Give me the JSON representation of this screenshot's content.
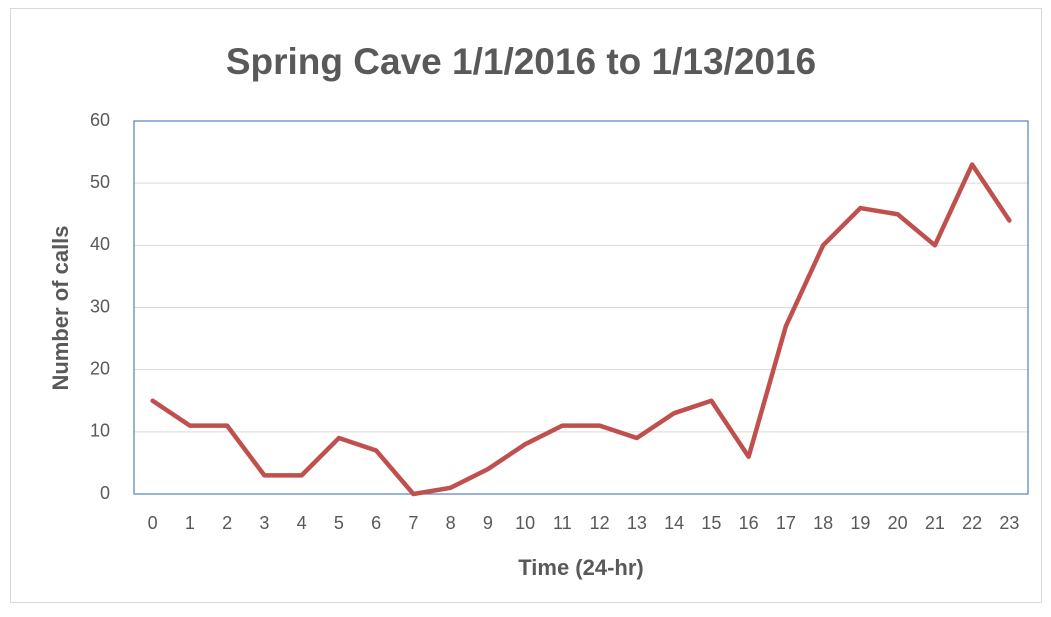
{
  "chart_data": {
    "type": "line",
    "title": "Spring Cave 1/1/2016 to 1/13/2016",
    "x_label": "Time (24-hr)",
    "y_label": "Number of calls",
    "categories": [
      "0",
      "1",
      "2",
      "3",
      "4",
      "5",
      "6",
      "7",
      "8",
      "9",
      "10",
      "11",
      "12",
      "13",
      "14",
      "15",
      "16",
      "17",
      "18",
      "19",
      "20",
      "21",
      "22",
      "23"
    ],
    "values": [
      15,
      11,
      11,
      3,
      3,
      9,
      7,
      0,
      1,
      4,
      8,
      11,
      11,
      9,
      13,
      15,
      6,
      27,
      40,
      46,
      45,
      40,
      53,
      44
    ],
    "color": "#c0504d",
    "ylim": [
      0,
      60
    ],
    "yticks": [
      0,
      10,
      20,
      30,
      40,
      50,
      60
    ],
    "grid": true
  }
}
